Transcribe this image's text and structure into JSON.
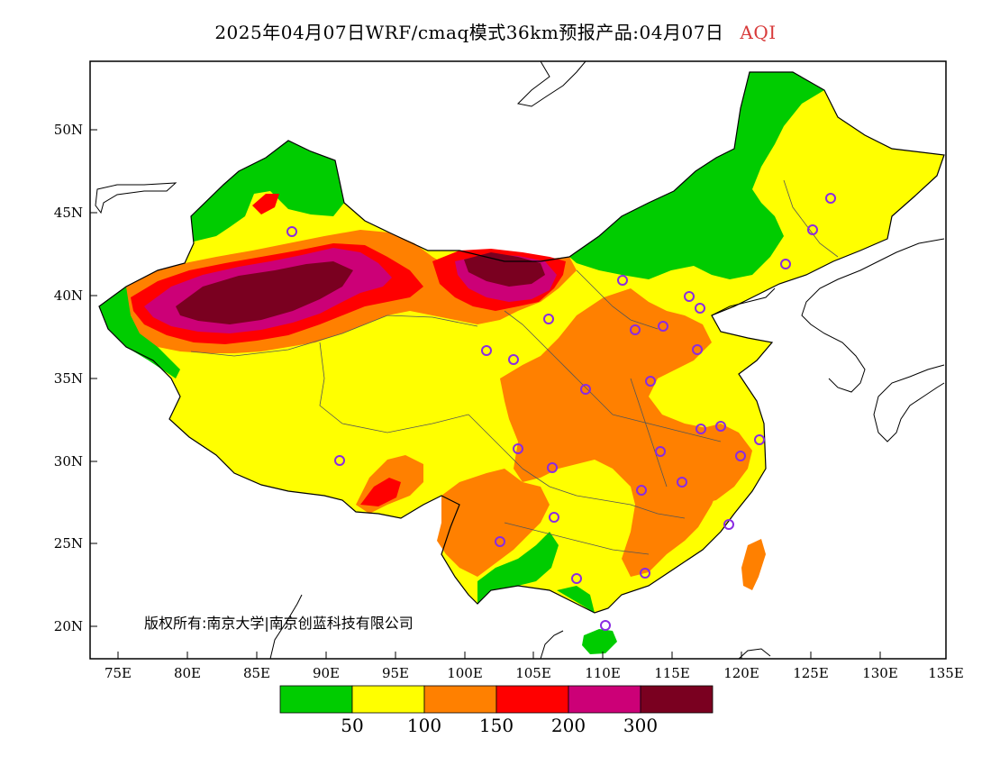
{
  "title": {
    "main": "2025年04月07日WRF/cmaq模式36km预报产品:04月07日",
    "variable": "AQI",
    "variable_color": "#d83a3a"
  },
  "axes": {
    "lat_labels": [
      "50N",
      "45N",
      "40N",
      "35N",
      "30N",
      "25N",
      "20N"
    ],
    "lon_labels": [
      "75E",
      "80E",
      "85E",
      "90E",
      "95E",
      "100E",
      "105E",
      "110E",
      "115E",
      "120E",
      "125E",
      "130E",
      "135E"
    ]
  },
  "copyright": "版权所有:南京大学|南京创蓝科技有限公司",
  "colorbar": {
    "colors": [
      "#00cc00",
      "#ffff00",
      "#ff8000",
      "#ff0000",
      "#cc0077",
      "#7a0020"
    ],
    "labels": [
      "50",
      "100",
      "150",
      "200",
      "300"
    ]
  },
  "legend_categories": [
    {
      "range": "<50",
      "color": "#00cc00"
    },
    {
      "range": "50-100",
      "color": "#ffff00"
    },
    {
      "range": "100-150",
      "color": "#ff8000"
    },
    {
      "range": "150-200",
      "color": "#ff0000"
    },
    {
      "range": "200-300",
      "color": "#cc0077"
    },
    {
      "range": ">300",
      "color": "#7a0020"
    }
  ]
}
